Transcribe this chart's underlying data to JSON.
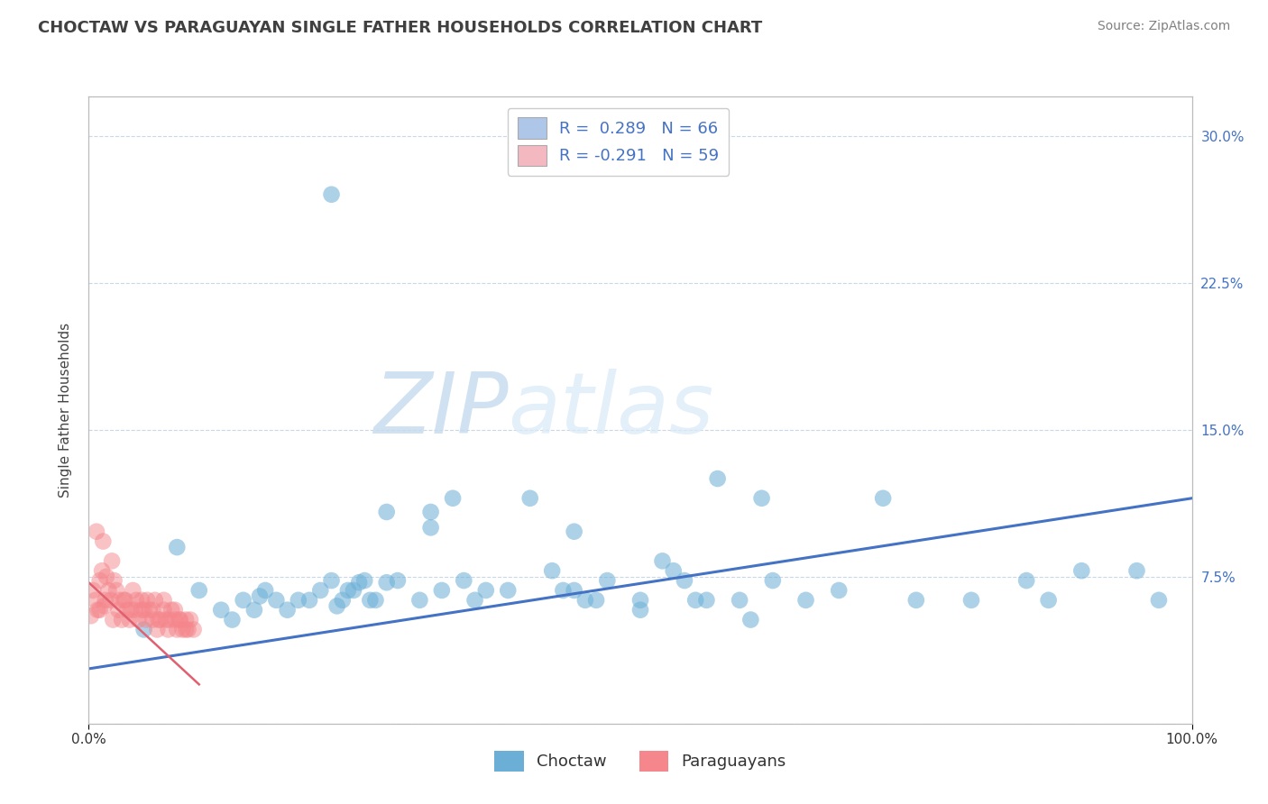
{
  "title": "CHOCTAW VS PARAGUAYAN SINGLE FATHER HOUSEHOLDS CORRELATION CHART",
  "source": "Source: ZipAtlas.com",
  "ylabel": "Single Father Households",
  "xlim": [
    0.0,
    1.0
  ],
  "ylim": [
    0.0,
    0.32
  ],
  "yticks": [
    0.0,
    0.075,
    0.15,
    0.225,
    0.3
  ],
  "ytick_labels": [
    "",
    "7.5%",
    "15.0%",
    "22.5%",
    "30.0%"
  ],
  "xticks": [
    0.0,
    1.0
  ],
  "xtick_labels": [
    "0.0%",
    "100.0%"
  ],
  "legend_entries": [
    {
      "label": "R =  0.289   N = 66",
      "color": "#aec6e8"
    },
    {
      "label": "R = -0.291   N = 59",
      "color": "#f4b8c1"
    }
  ],
  "legend_labels_bottom": [
    "Choctaw",
    "Paraguayans"
  ],
  "watermark_zip": "ZIP",
  "watermark_atlas": "atlas",
  "background_color": "#ffffff",
  "grid_color": "#c8d8e8",
  "choctaw_color": "#6baed6",
  "paraguayan_color": "#f4868c",
  "choctaw_line_color": "#4472c4",
  "paraguayan_line_color": "#e06070",
  "title_color": "#404040",
  "source_color": "#808080",
  "tick_color": "#4472c4",
  "choctaw_scatter_x": [
    0.05,
    0.08,
    0.1,
    0.12,
    0.13,
    0.14,
    0.15,
    0.155,
    0.16,
    0.17,
    0.18,
    0.19,
    0.2,
    0.21,
    0.22,
    0.225,
    0.23,
    0.235,
    0.24,
    0.245,
    0.25,
    0.255,
    0.26,
    0.27,
    0.28,
    0.3,
    0.31,
    0.32,
    0.33,
    0.34,
    0.35,
    0.36,
    0.38,
    0.4,
    0.42,
    0.43,
    0.44,
    0.45,
    0.47,
    0.5,
    0.52,
    0.54,
    0.55,
    0.57,
    0.6,
    0.62,
    0.65,
    0.68,
    0.72,
    0.75,
    0.8,
    0.85,
    0.87,
    0.9,
    0.95,
    0.97,
    0.22,
    0.27,
    0.31,
    0.44,
    0.46,
    0.5,
    0.53,
    0.56,
    0.59,
    0.61
  ],
  "choctaw_scatter_y": [
    0.048,
    0.09,
    0.068,
    0.058,
    0.053,
    0.063,
    0.058,
    0.065,
    0.068,
    0.063,
    0.058,
    0.063,
    0.063,
    0.068,
    0.073,
    0.06,
    0.063,
    0.068,
    0.068,
    0.072,
    0.073,
    0.063,
    0.063,
    0.072,
    0.073,
    0.063,
    0.1,
    0.068,
    0.115,
    0.073,
    0.063,
    0.068,
    0.068,
    0.115,
    0.078,
    0.068,
    0.068,
    0.063,
    0.073,
    0.063,
    0.083,
    0.073,
    0.063,
    0.125,
    0.053,
    0.073,
    0.063,
    0.068,
    0.115,
    0.063,
    0.063,
    0.073,
    0.063,
    0.078,
    0.078,
    0.063,
    0.27,
    0.108,
    0.108,
    0.098,
    0.063,
    0.058,
    0.078,
    0.063,
    0.063,
    0.115
  ],
  "paraguayan_scatter_x": [
    0.002,
    0.004,
    0.006,
    0.008,
    0.01,
    0.012,
    0.014,
    0.016,
    0.018,
    0.02,
    0.022,
    0.025,
    0.027,
    0.03,
    0.032,
    0.035,
    0.037,
    0.04,
    0.042,
    0.045,
    0.048,
    0.05,
    0.052,
    0.055,
    0.058,
    0.06,
    0.062,
    0.065,
    0.068,
    0.07,
    0.072,
    0.075,
    0.078,
    0.08,
    0.082,
    0.085,
    0.088,
    0.09,
    0.092,
    0.095,
    0.01,
    0.015,
    0.023,
    0.028,
    0.033,
    0.038,
    0.043,
    0.048,
    0.053,
    0.058,
    0.063,
    0.068,
    0.073,
    0.078,
    0.083,
    0.088,
    0.007,
    0.013,
    0.021
  ],
  "paraguayan_scatter_y": [
    0.055,
    0.068,
    0.063,
    0.058,
    0.073,
    0.078,
    0.06,
    0.075,
    0.068,
    0.063,
    0.053,
    0.068,
    0.058,
    0.053,
    0.063,
    0.058,
    0.053,
    0.068,
    0.058,
    0.053,
    0.063,
    0.058,
    0.053,
    0.058,
    0.053,
    0.063,
    0.048,
    0.053,
    0.063,
    0.053,
    0.048,
    0.058,
    0.053,
    0.048,
    0.053,
    0.048,
    0.053,
    0.048,
    0.053,
    0.048,
    0.058,
    0.063,
    0.073,
    0.063,
    0.063,
    0.058,
    0.063,
    0.058,
    0.063,
    0.058,
    0.053,
    0.058,
    0.053,
    0.058,
    0.053,
    0.048,
    0.098,
    0.093,
    0.083
  ],
  "choctaw_line_x": [
    0.0,
    1.0
  ],
  "choctaw_line_y": [
    0.028,
    0.115
  ],
  "paraguayan_line_x": [
    0.0,
    0.1
  ],
  "paraguayan_line_y": [
    0.072,
    0.02
  ]
}
